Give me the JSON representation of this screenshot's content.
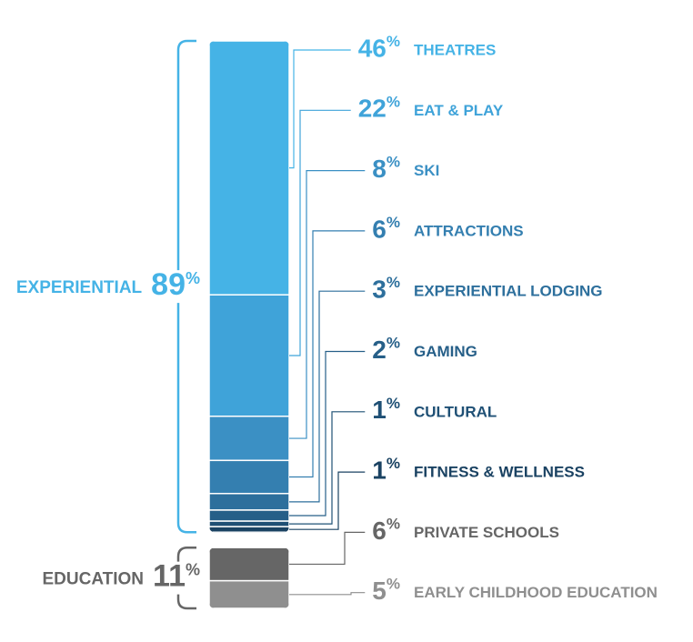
{
  "chart_data": {
    "type": "stacked-bar",
    "groups": [
      {
        "name": "EXPERIENTIAL",
        "value": 89,
        "value_label": "89%",
        "color": "#45b3e6",
        "categories": [
          "THEATRES",
          "EAT & PLAY",
          "SKI",
          "ATTRACTIONS",
          "EXPERIENTIAL LODGING",
          "GAMING",
          "CULTURAL",
          "FITNESS & WELLNESS"
        ],
        "values": [
          46,
          22,
          8,
          6,
          3,
          2,
          1,
          1
        ],
        "value_labels": [
          "46%",
          "22%",
          "8%",
          "6%",
          "3%",
          "2%",
          "1%",
          "1%"
        ],
        "colors": [
          "#45b3e6",
          "#3fa3d9",
          "#3b90c4",
          "#347fb0",
          "#2d6f9c",
          "#265f88",
          "#1f5075",
          "#1a4262"
        ]
      },
      {
        "name": "EDUCATION",
        "value": 11,
        "value_label": "11%",
        "color": "#666666",
        "categories": [
          "PRIVATE SCHOOLS",
          "EARLY CHILDHOOD EDUCATION"
        ],
        "values": [
          6,
          5
        ],
        "value_labels": [
          "6%",
          "5%"
        ],
        "colors": [
          "#666666",
          "#8f8f8f"
        ]
      }
    ]
  }
}
